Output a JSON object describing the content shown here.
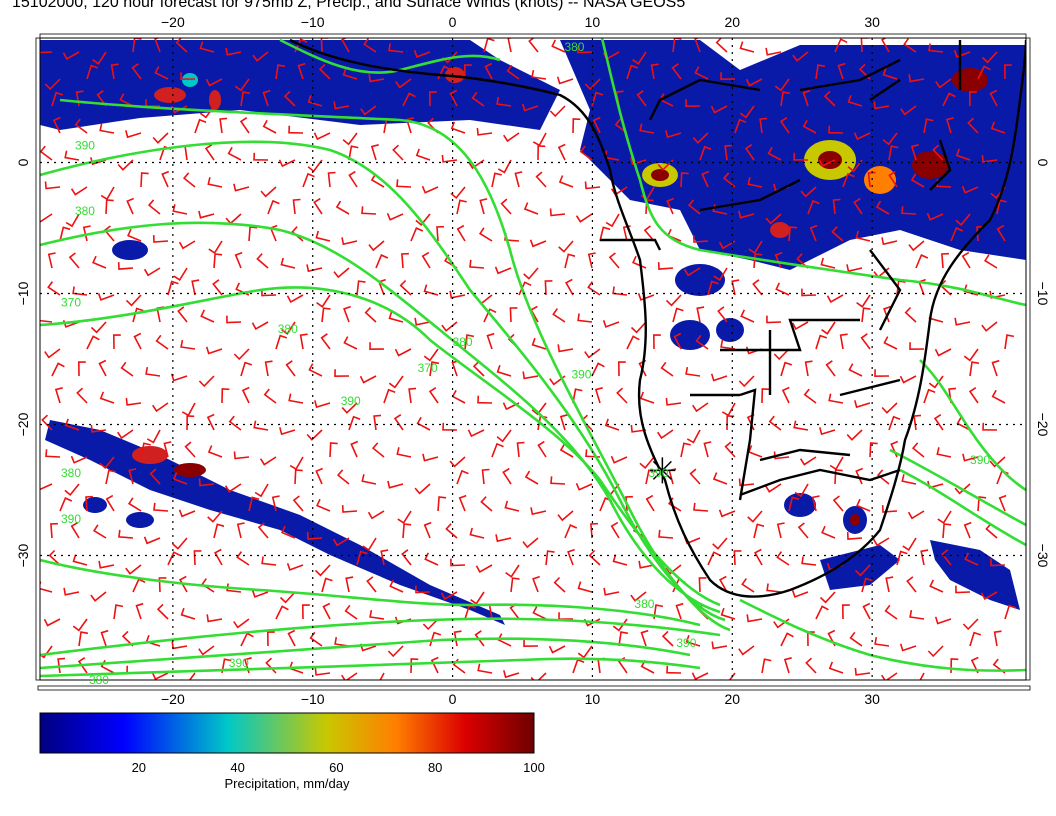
{
  "title": "15102000, 120 hour forecast for 975mb Z, Precip., and Surface Winds (knots) -- NASA GEOS5",
  "map": {
    "lon_range": [
      -29.5,
      41
    ],
    "lat_range": [
      -39.5,
      9.5
    ],
    "lon_ticks": [
      -20,
      -10,
      0,
      10,
      20,
      30
    ],
    "lat_ticks": [
      0,
      -10,
      -20,
      -30
    ],
    "lon_labels": [
      "−20",
      "−10",
      "0",
      "10",
      "20",
      "30"
    ],
    "lat_labels": [
      "0",
      "−10",
      "−20",
      "−30"
    ],
    "grid": "dotted",
    "marker": {
      "lon": 15,
      "lat": -23.5
    },
    "contour_labels": [
      {
        "text": "370",
        "lon": -28,
        "lat": -11
      },
      {
        "text": "380",
        "lon": -27,
        "lat": -4
      },
      {
        "text": "390",
        "lon": -27,
        "lat": 1
      },
      {
        "text": "380",
        "lon": -12.5,
        "lat": -13
      },
      {
        "text": "390",
        "lon": -8,
        "lat": -18.5
      },
      {
        "text": "370",
        "lon": -2.5,
        "lat": -16
      },
      {
        "text": "380",
        "lon": 0,
        "lat": -14
      },
      {
        "text": "390",
        "lon": 8.5,
        "lat": -16.5
      },
      {
        "text": "380",
        "lon": -28,
        "lat": -24
      },
      {
        "text": "390",
        "lon": -28,
        "lat": -27.5
      },
      {
        "text": "390",
        "lon": -16,
        "lat": -38.5
      },
      {
        "text": "380",
        "lon": -26,
        "lat": -39.8
      },
      {
        "text": "380",
        "lon": 13,
        "lat": -34
      },
      {
        "text": "390",
        "lon": 16,
        "lat": -37
      },
      {
        "text": "390",
        "lon": 14,
        "lat": -24
      },
      {
        "text": "390",
        "lon": 37,
        "lat": -23
      },
      {
        "text": "380",
        "lon": 8,
        "lat": 8.5
      }
    ],
    "colors": {
      "contour": "#33dd33",
      "wind_barb": "#ee1111",
      "coastline": "#000000"
    }
  },
  "colorbar": {
    "label": "Precipitation, mm/day",
    "min": 0,
    "max": 100,
    "ticks": [
      20,
      40,
      60,
      80,
      100
    ],
    "tick_labels": [
      "20",
      "40",
      "60",
      "80",
      "100"
    ],
    "colors": [
      "#000080",
      "#0000ff",
      "#00c8c8",
      "#c8c800",
      "#ff7f00",
      "#dc0000",
      "#6e0000"
    ]
  }
}
